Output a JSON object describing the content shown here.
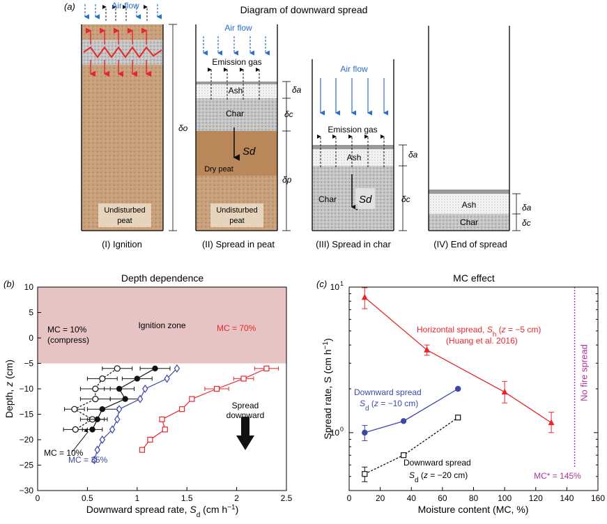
{
  "colors": {
    "peat": "#c9a07c",
    "peat_dark": "#b07a4c",
    "ash": "#eeeeee",
    "char": "#bcbcbc",
    "smolder": "#9a9a9a",
    "airflow": "#2a6fc9",
    "ignition_zone": "#e7c3c3",
    "red": "#e8262a",
    "blue": "#3b48a8",
    "black": "#111111",
    "magenta": "#b0319a"
  },
  "panel_a": {
    "label": "(a)",
    "title": "Diagram of downward spread",
    "columns": [
      {
        "caption": "(I) Ignition",
        "air_flow": "Air  flow",
        "bottom_label_1": "Undisturbed",
        "bottom_label_2": "peat",
        "dim": "δo"
      },
      {
        "caption": "(II) Spread in peat",
        "air_flow": "Air  flow",
        "emission": "Emission gas",
        "ash": "Ash",
        "char": "Char",
        "sd": "Sd",
        "dry_peat": "Dry peat",
        "bottom_label_1": "Undisturbed",
        "bottom_label_2": "peat",
        "dims": [
          "δa",
          "δc",
          "δp"
        ]
      },
      {
        "caption": "(III) Spread in char",
        "air_flow": "Air  flow",
        "emission": "Emission gas",
        "ash": "Ash",
        "char": "Char",
        "sd": "Sd",
        "dims": [
          "δa",
          "δc"
        ]
      },
      {
        "caption": "(IV) End of spread",
        "ash": "Ash",
        "char": "Char",
        "dims": [
          "δa",
          "δc"
        ]
      }
    ]
  },
  "chart_data": [
    {
      "type": "line",
      "panel_label": "(b)",
      "title": "Depth dependence",
      "xlabel": "Downward spread rate, Sd (cm h−1)",
      "ylabel": "Depth, z (cm)",
      "xlim": [
        0,
        2.5
      ],
      "ylim": [
        -30,
        10
      ],
      "x_ticks": [
        "0",
        "0.5",
        "1",
        "1.5",
        "2",
        "2.5"
      ],
      "y_ticks": [
        "10",
        "5",
        "0",
        "−5",
        "−10",
        "−15",
        "−20",
        "−25",
        "−30"
      ],
      "shaded_region": {
        "label": "Ignition zone",
        "y_range": [
          -5,
          10
        ]
      },
      "annotation": {
        "line1": "Spread",
        "line2": "downward"
      },
      "series": [
        {
          "name": "MC = 10% (compress)",
          "label_1": "MC = 10%",
          "label_2": "(compress)",
          "marker": "open-circle",
          "dash": true,
          "color": "#111111",
          "points": [
            [
              0.8,
              -6
            ],
            [
              0.65,
              -8
            ],
            [
              0.58,
              -10
            ],
            [
              0.58,
              -12
            ],
            [
              0.37,
              -14
            ],
            [
              0.55,
              -16
            ],
            [
              0.38,
              -18
            ]
          ],
          "xerr": [
            0.15,
            0.15,
            0.15,
            0.15,
            0.1,
            0.12,
            0.12
          ]
        },
        {
          "name": "MC = 10%",
          "label_1": "MC = 10%",
          "marker": "filled-circle",
          "dash": false,
          "color": "#111111",
          "points": [
            [
              1.18,
              -6
            ],
            [
              1.0,
              -8
            ],
            [
              0.82,
              -10
            ],
            [
              0.88,
              -12
            ],
            [
              0.65,
              -14
            ],
            [
              0.6,
              -16
            ],
            [
              0.55,
              -18
            ]
          ],
          "xerr": [
            0.15,
            0.15,
            0.15,
            0.15,
            0.15,
            0.1,
            0.1
          ]
        },
        {
          "name": "MC = 35%",
          "label_1": "MC = 35%",
          "marker": "open-diamond",
          "dash": false,
          "color": "#3b48a8",
          "points": [
            [
              1.4,
              -6
            ],
            [
              1.3,
              -8
            ],
            [
              1.08,
              -10
            ],
            [
              1.03,
              -12
            ],
            [
              0.82,
              -14
            ],
            [
              0.8,
              -16
            ],
            [
              0.75,
              -18
            ],
            [
              0.65,
              -20
            ],
            [
              0.6,
              -22
            ],
            [
              0.57,
              -24
            ]
          ],
          "xerr": [
            0,
            0,
            0,
            0,
            0,
            0,
            0,
            0,
            0,
            0
          ]
        },
        {
          "name": "MC = 70%",
          "label_1": "MC = 70%",
          "marker": "open-square",
          "dash": false,
          "color": "#e8262a",
          "points": [
            [
              2.3,
              -6
            ],
            [
              2.07,
              -8
            ],
            [
              1.8,
              -10
            ],
            [
              1.55,
              -12
            ],
            [
              1.45,
              -14
            ],
            [
              1.25,
              -16
            ],
            [
              1.28,
              -18
            ],
            [
              1.13,
              -20
            ],
            [
              1.05,
              -22
            ]
          ],
          "xerr": [
            0.12,
            0.1,
            0.12,
            0,
            0,
            0,
            0,
            0,
            0
          ]
        }
      ]
    },
    {
      "type": "line",
      "panel_label": "(c)",
      "title": "MC effect",
      "xlabel": "Moisture content (MC, %)",
      "ylabel": "Spread rate, S (cm h−1)",
      "x_scale": "linear",
      "y_scale": "log",
      "xlim": [
        0,
        160
      ],
      "ylim": [
        0.4,
        10
      ],
      "x_ticks": [
        "0",
        "20",
        "40",
        "60",
        "80",
        "100",
        "120",
        "140",
        "160"
      ],
      "y_ticks": [
        {
          "label": "10",
          "sup": "0",
          "value": 1
        },
        {
          "label": "10",
          "sup": "1",
          "value": 10
        }
      ],
      "vline": {
        "x": 145,
        "label": "No fire spread",
        "marker_label": "MC* = 145%"
      },
      "series": [
        {
          "name": "Horizontal spread",
          "label_1": "Horizontal spread, Sh (z = −5 cm)",
          "label_2": "(Huang et al. 2016)",
          "marker": "filled-triangle",
          "color": "#e8262a",
          "points": [
            [
              10,
              8.5
            ],
            [
              50,
              3.7
            ],
            [
              100,
              1.9
            ],
            [
              130,
              1.17
            ]
          ],
          "yerr_low": [
            7.1,
            3.4,
            1.6,
            1.0
          ],
          "yerr_high": [
            9.9,
            4.0,
            2.25,
            1.38
          ]
        },
        {
          "name": "Downward spread z = −10 cm",
          "label_1": "Downward spread",
          "label_2": "Sd (z = −10 cm)",
          "marker": "filled-circle",
          "color": "#3b48a8",
          "points": [
            [
              10,
              1.0
            ],
            [
              35,
              1.2
            ],
            [
              70,
              2.0
            ]
          ],
          "yerr_low": [
            0.88,
            1.2,
            2.0
          ],
          "yerr_high": [
            1.12,
            1.2,
            2.0
          ]
        },
        {
          "name": "Downward spread z = −20 cm",
          "label_1": "Downward spread",
          "label_2": "Sd (z = −20 cm)",
          "marker": "open-square",
          "color": "#111111",
          "points": [
            [
              10,
              0.52
            ],
            [
              35,
              0.7
            ],
            [
              70,
              1.27
            ]
          ],
          "yerr_low": [
            0.46,
            0.7,
            1.27
          ],
          "yerr_high": [
            0.58,
            0.7,
            1.27
          ]
        }
      ]
    }
  ]
}
